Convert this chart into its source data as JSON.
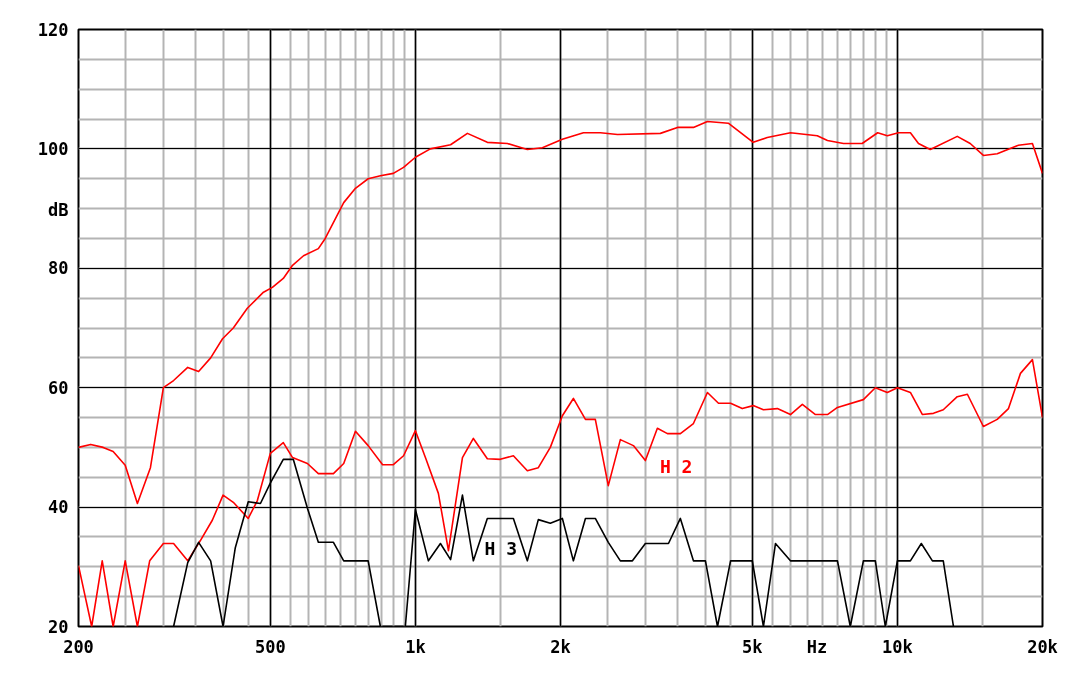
{
  "chart_data": {
    "type": "line",
    "xlabel": "Hz",
    "ylabel": "dB",
    "log": "x",
    "xlim": [
      200,
      20000
    ],
    "ylim": [
      20,
      120
    ],
    "xticks": [
      {
        "value": 200,
        "label": "200"
      },
      {
        "value": 250,
        "label": null
      },
      {
        "value": 300,
        "label": null
      },
      {
        "value": 350,
        "label": null
      },
      {
        "value": 400,
        "label": null
      },
      {
        "value": 450,
        "label": null
      },
      {
        "value": 500,
        "label": "500"
      },
      {
        "value": 550,
        "label": null
      },
      {
        "value": 600,
        "label": null
      },
      {
        "value": 650,
        "label": null
      },
      {
        "value": 700,
        "label": null
      },
      {
        "value": 750,
        "label": null
      },
      {
        "value": 800,
        "label": null
      },
      {
        "value": 850,
        "label": null
      },
      {
        "value": 900,
        "label": null
      },
      {
        "value": 950,
        "label": null
      },
      {
        "value": 1000,
        "label": "1k"
      },
      {
        "value": 1500,
        "label": null
      },
      {
        "value": 2000,
        "label": "2k"
      },
      {
        "value": 2500,
        "label": null
      },
      {
        "value": 3000,
        "label": null
      },
      {
        "value": 3500,
        "label": null
      },
      {
        "value": 4000,
        "label": null
      },
      {
        "value": 4500,
        "label": null
      },
      {
        "value": 5000,
        "label": "5k"
      },
      {
        "value": 5500,
        "label": null
      },
      {
        "value": 6000,
        "label": null
      },
      {
        "value": 6500,
        "label": null
      },
      {
        "value": 7000,
        "label": null
      },
      {
        "value": 7500,
        "label": null
      },
      {
        "value": 8000,
        "label": null
      },
      {
        "value": 8500,
        "label": null
      },
      {
        "value": 9000,
        "label": null
      },
      {
        "value": 9500,
        "label": null
      },
      {
        "value": 10000,
        "label": "10k"
      },
      {
        "value": 15000,
        "label": null
      },
      {
        "value": 20000,
        "label": "20k"
      }
    ],
    "yticks": [
      20,
      {
        "value": 25,
        "label": null
      },
      {
        "value": 30,
        "label": null
      },
      {
        "value": 35,
        "label": null
      },
      40,
      {
        "value": 45,
        "label": null
      },
      {
        "value": 50,
        "label": null
      },
      {
        "value": 55,
        "label": null
      },
      60,
      {
        "value": 65,
        "label": null
      },
      {
        "value": 70,
        "label": null
      },
      {
        "value": 75,
        "label": null
      },
      80,
      {
        "value": 85,
        "label": null
      },
      {
        "value": 90,
        "label": null
      },
      {
        "value": 95,
        "label": null
      },
      100,
      {
        "value": 105,
        "label": null
      },
      {
        "value": 110,
        "label": null
      },
      {
        "value": 115,
        "label": null
      },
      120
    ],
    "grid": true,
    "line_style": "solid",
    "series": [
      {
        "color": "#ff0000",
        "x": [
          200,
          212,
          225,
          236,
          250,
          265,
          282,
          300,
          315,
          337,
          355,
          376,
          398,
          419,
          448,
          484,
          505,
          532,
          556,
          586,
          629,
          650,
          710,
          751,
          798,
          846,
          900,
          945,
          1000,
          1074,
          1183,
          1282,
          1410,
          1552,
          1707,
          1834,
          2018,
          2232,
          2420,
          2626,
          3223,
          3497,
          3774,
          4035,
          4458,
          5022,
          5370,
          6000,
          6820,
          7160,
          7730,
          8450,
          9100,
          9530,
          10050,
          10640,
          11060,
          11700,
          13310,
          14160,
          15080,
          16110,
          17820,
          19060,
          20000
        ],
        "values": [
          50,
          50.5,
          50,
          49.3,
          47,
          40.6,
          46.6,
          60,
          61.2,
          63.4,
          62.7,
          65,
          68.2,
          70,
          73.3,
          76,
          76.8,
          78.3,
          80.5,
          82.1,
          83.3,
          85,
          91,
          93.4,
          95,
          95.5,
          95.9,
          96.9,
          98.6,
          100,
          100.7,
          102.6,
          101.1,
          100.9,
          99.9,
          100.2,
          101.6,
          102.7,
          102.7,
          102.4,
          102.6,
          103.6,
          103.6,
          104.6,
          104.3,
          101.1,
          101.9,
          102.7,
          102.2,
          101.4,
          100.9,
          100.9,
          102.7,
          102.2,
          102.7,
          102.7,
          100.9,
          99.9,
          102.1,
          100.9,
          98.9,
          99.2,
          100.6,
          100.9,
          95.9
        ]
      },
      {
        "name": "H 2",
        "color": "#ff0000",
        "x": [
          200,
          213,
          224,
          236,
          250,
          265,
          281,
          300,
          315,
          337,
          358,
          379,
          399,
          419,
          450,
          470,
          500,
          532,
          556,
          597,
          629,
          676,
          710,
          751,
          798,
          855,
          900,
          945,
          1000,
          1049,
          1116,
          1171,
          1252,
          1319,
          1410,
          1500,
          1597,
          1707,
          1799,
          1905,
          2018,
          2127,
          2253,
          2362,
          2513,
          2662,
          2833,
          3000,
          3177,
          3333,
          3546,
          3774,
          4035,
          4254,
          4507,
          4766,
          5022,
          5273,
          5636,
          6000,
          6350,
          6760,
          7160,
          7510,
          8500,
          9000,
          9530,
          10000,
          10640,
          11270,
          11880,
          12450,
          13310,
          13970,
          15080,
          16110,
          17000,
          18000,
          19060,
          20000
        ],
        "values": [
          30.2,
          20,
          31,
          20,
          31,
          20,
          31,
          33.9,
          33.9,
          31,
          34.4,
          37.8,
          42,
          40.8,
          38.1,
          41.1,
          49,
          50.8,
          48.3,
          47.3,
          45.6,
          45.6,
          47.3,
          52.7,
          50.3,
          47.1,
          47.1,
          48.6,
          52.8,
          48.3,
          42.3,
          32.7,
          48.3,
          51.5,
          48.1,
          48,
          48.6,
          46.1,
          46.6,
          50,
          55.3,
          58.2,
          54.7,
          54.7,
          43.6,
          51.3,
          50.3,
          47.8,
          53.2,
          52.3,
          52.3,
          54,
          59.2,
          57.4,
          57.4,
          56.5,
          57,
          56.3,
          56.5,
          55.5,
          57.2,
          55.5,
          55.5,
          56.7,
          58,
          60,
          59.2,
          60,
          59.2,
          55.5,
          55.7,
          56.3,
          58.5,
          58.9,
          53.5,
          54.7,
          56.5,
          62.4,
          64.7,
          55
        ]
      },
      {
        "name": "H 3",
        "color": "#000000",
        "x": [
          315,
          337,
          355,
          376,
          399,
          423,
          450,
          477,
          500,
          532,
          558,
          597,
          629,
          676,
          710,
          798,
          846,
          953,
          1000,
          1064,
          1127,
          1183,
          1252,
          1319,
          1410,
          1597,
          1707,
          1799,
          1905,
          2018,
          2127,
          2253,
          2362,
          2513,
          2662,
          2820,
          3000,
          3350,
          3546,
          3774,
          3997,
          4234,
          4507,
          5000,
          5273,
          5585,
          6000,
          7510,
          7985,
          8500,
          9000,
          9440,
          10000,
          10640,
          11210,
          11820,
          12450,
          13070
        ],
        "values": [
          20,
          30.7,
          34.1,
          31,
          20,
          33.2,
          40.9,
          40.6,
          44,
          48,
          48,
          39.8,
          34.1,
          34.1,
          31,
          31,
          20,
          20,
          39.6,
          31,
          33.9,
          31.2,
          42,
          31,
          38.1,
          38.1,
          31,
          37.9,
          37.3,
          38.1,
          31,
          38.1,
          38.1,
          34.1,
          31,
          31,
          33.9,
          33.9,
          38.1,
          31,
          31,
          20,
          31,
          31,
          20,
          33.9,
          31,
          31,
          20,
          31,
          31,
          20,
          31,
          31,
          33.9,
          31,
          31,
          20
        ]
      }
    ]
  }
}
